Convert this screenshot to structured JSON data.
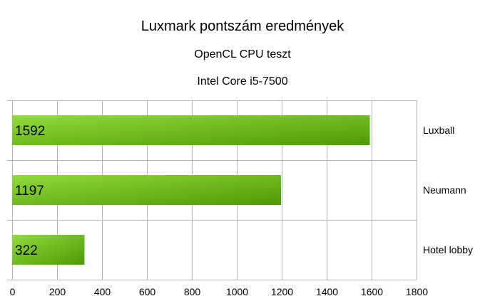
{
  "chart_data": {
    "type": "bar",
    "orientation": "horizontal",
    "title": "Luxmark pontszám eredmények",
    "subtitle": "OpenCL CPU teszt",
    "subtitle2": "Intel Core i5-7500",
    "categories": [
      "Luxball",
      "Neumann",
      "Hotel lobby"
    ],
    "values": [
      1592,
      1197,
      322
    ],
    "data_labels": [
      "1592",
      "1197",
      "322"
    ],
    "xlim": [
      0,
      1800
    ],
    "xticks": [
      "0",
      "200",
      "400",
      "600",
      "800",
      "1000",
      "1200",
      "1400",
      "1600",
      "1800"
    ],
    "grid": true,
    "category_labels_position": "right",
    "colors": {
      "bar_light": "#8fdc3a",
      "bar_dark": "#4e9a06",
      "grid": "#b3b3b3"
    }
  }
}
